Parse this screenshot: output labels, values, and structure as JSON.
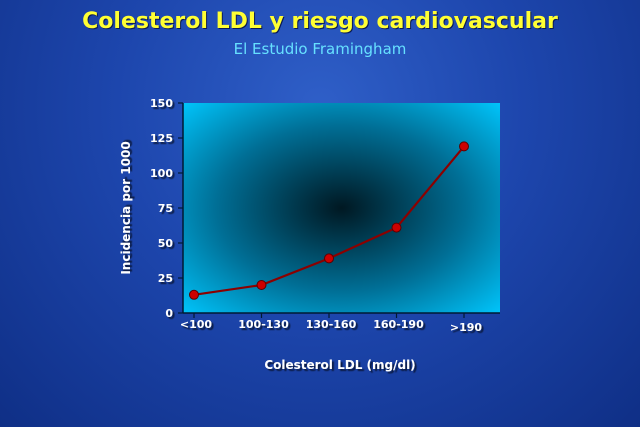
{
  "header": {
    "title": "Colesterol LDL y riesgo cardiovascular",
    "subtitle": "El Estudio Framingham"
  },
  "colors": {
    "background": "#1d46ad",
    "title": "#ffff33",
    "subtitle": "#66e0ff",
    "plot_edge": "#00bfff",
    "plot_center": "#001822",
    "line": "#8b0000",
    "marker": "#cc0000"
  },
  "chart_data": {
    "type": "line",
    "title": "Colesterol LDL y riesgo cardiovascular",
    "subtitle": "El Estudio Framingham",
    "xlabel": "Colesterol LDL  (mg/dl)",
    "ylabel": "Incidencia  por  1000",
    "categories": [
      "<100",
      "100-130",
      "130-160",
      "160-190",
      ">190"
    ],
    "series": [
      {
        "values": [
          13,
          20,
          39,
          61,
          119
        ]
      }
    ],
    "ylim": [
      0,
      150
    ],
    "yticks": [
      0,
      25,
      50,
      75,
      100,
      125,
      150
    ],
    "grid": false,
    "legend": "none"
  }
}
